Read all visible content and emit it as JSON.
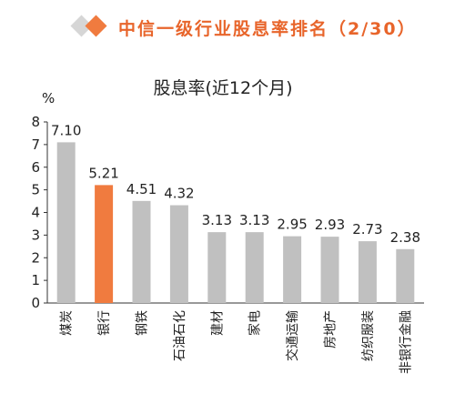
{
  "header": {
    "title": "中信一级行业股息率排名（2/30）"
  },
  "colors": {
    "highlight": "#f07b3f",
    "bar": "#c0c0c0",
    "accent_text": "#e8652b",
    "diamond_gray": "#d6d6d6"
  },
  "chart_data": {
    "type": "bar",
    "title": "股息率(近12个月)",
    "ylabel": "%",
    "ylim": [
      0,
      8
    ],
    "yticks": [
      0,
      1,
      2,
      3,
      4,
      5,
      6,
      7,
      8
    ],
    "categories": [
      "煤炭",
      "银行",
      "钢铁",
      "石油石化",
      "建材",
      "家电",
      "交通运输",
      "房地产",
      "纺织服装",
      "非银行金融"
    ],
    "values": [
      7.1,
      5.21,
      4.51,
      4.32,
      3.13,
      3.13,
      2.95,
      2.93,
      2.73,
      2.38
    ],
    "value_labels": [
      "7.10",
      "5.21",
      "4.51",
      "4.32",
      "3.13",
      "3.13",
      "2.95",
      "2.93",
      "2.73",
      "2.38"
    ],
    "highlight_category": "银行",
    "grid": false,
    "legend": "none"
  }
}
